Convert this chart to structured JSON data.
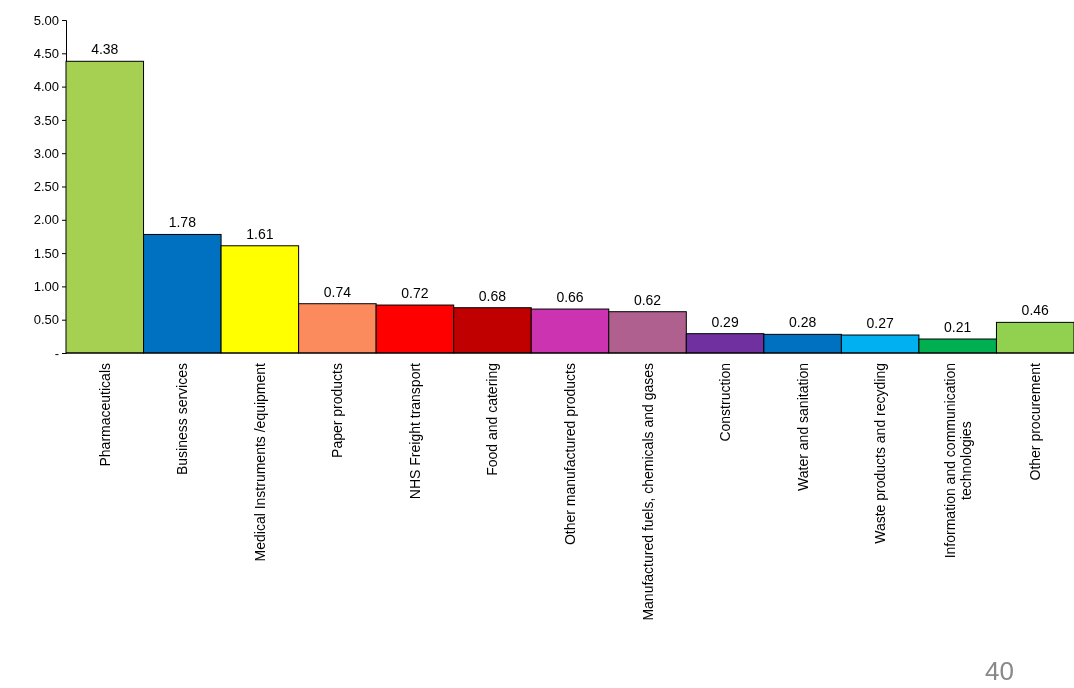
{
  "chart_data": {
    "type": "bar",
    "categories": [
      "Pharmaceuticals",
      "Business services",
      "Medical Instruments /equipment",
      "Paper products",
      "NHS Freight transport",
      "Food and catering",
      "Other manufactured products",
      "Manufactured fuels, chemicals and gases",
      "Construction",
      "Water and sanitation",
      "Waste products and recyding",
      "Information and communication technologies",
      "Other procurement"
    ],
    "values": [
      4.38,
      1.78,
      1.61,
      0.74,
      0.72,
      0.68,
      0.66,
      0.62,
      0.29,
      0.28,
      0.27,
      0.21,
      0.46
    ],
    "colors": [
      "#a6d052",
      "#0070c0",
      "#ffff00",
      "#fb8a5c",
      "#ff0000",
      "#c00000",
      "#cc33b0",
      "#b0608f",
      "#7030a0",
      "#0070c0",
      "#00b0f0",
      "#00b050",
      "#92d050"
    ],
    "ylim": [
      0,
      5
    ],
    "yticks": [
      {
        "value": 0,
        "label": "-"
      },
      {
        "value": 0.5,
        "label": "0.50"
      },
      {
        "value": 1,
        "label": "1.00"
      },
      {
        "value": 1.5,
        "label": "1.50"
      },
      {
        "value": 2,
        "label": "2.00"
      },
      {
        "value": 2.5,
        "label": "2.50"
      },
      {
        "value": 3,
        "label": "3.00"
      },
      {
        "value": 3.5,
        "label": "3.50"
      },
      {
        "value": 4,
        "label": "4.00"
      },
      {
        "value": 4.5,
        "label": "4.50"
      },
      {
        "value": 5,
        "label": "5.00"
      }
    ],
    "data_labels": true,
    "annotations": [
      "40"
    ]
  }
}
